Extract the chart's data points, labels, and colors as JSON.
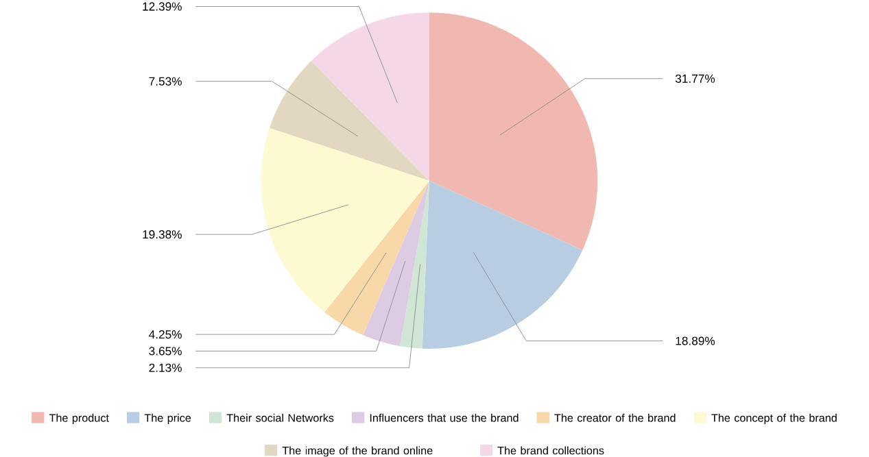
{
  "chart_data": {
    "type": "pie",
    "categories": [
      "The product",
      "The price",
      "Their social Networks",
      "Influencers that use the brand",
      "The creator of the brand",
      "The concept of the brand",
      "The image of the brand online",
      "The brand collections"
    ],
    "values": [
      31.77,
      18.89,
      2.13,
      3.65,
      4.25,
      19.38,
      7.53,
      12.39
    ],
    "value_labels": [
      "31.77%",
      "18.89%",
      "2.13%",
      "3.65%",
      "4.25%",
      "19.38%",
      "7.53%",
      "12.39%"
    ],
    "colors": [
      "#f0b8b0",
      "#b8cce2",
      "#d0e6d4",
      "#dccbe2",
      "#f8d8a8",
      "#fdf9d0",
      "#e2d8c2",
      "#f5d8e8"
    ],
    "legend": "bottom"
  }
}
